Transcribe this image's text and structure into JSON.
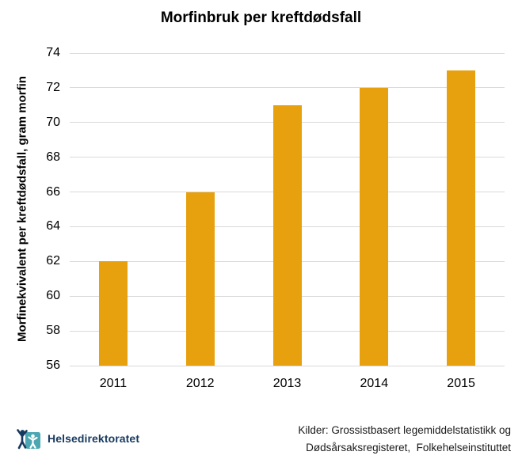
{
  "chart_data": {
    "type": "bar",
    "title": "Morfinbruk per kreftdødsfall",
    "categories": [
      "2011",
      "2012",
      "2013",
      "2014",
      "2015"
    ],
    "values": [
      62,
      66,
      71,
      72,
      73
    ],
    "xlabel": "",
    "ylabel": "Morfinekvivalent per kreftdødsfall, gram morfin",
    "ylim": [
      56,
      74
    ],
    "yticks": [
      56,
      58,
      60,
      62,
      64,
      66,
      68,
      70,
      72,
      74
    ],
    "grid": true,
    "legend": "none",
    "bar_color": "#E8A10E",
    "gridline_color": "#D9D9D9"
  },
  "footer": {
    "logo_icon": "helsedirektoratet-logo",
    "logo_text": "Helsedirektoratet",
    "logo_teal": "#4BA7B2",
    "logo_navy": "#16395F",
    "source_line1": "Kilder: Grossistbasert legemiddelstatistikk og",
    "source_line2": "Dødsårsaksregisteret,  Folkehelseinstituttet"
  }
}
